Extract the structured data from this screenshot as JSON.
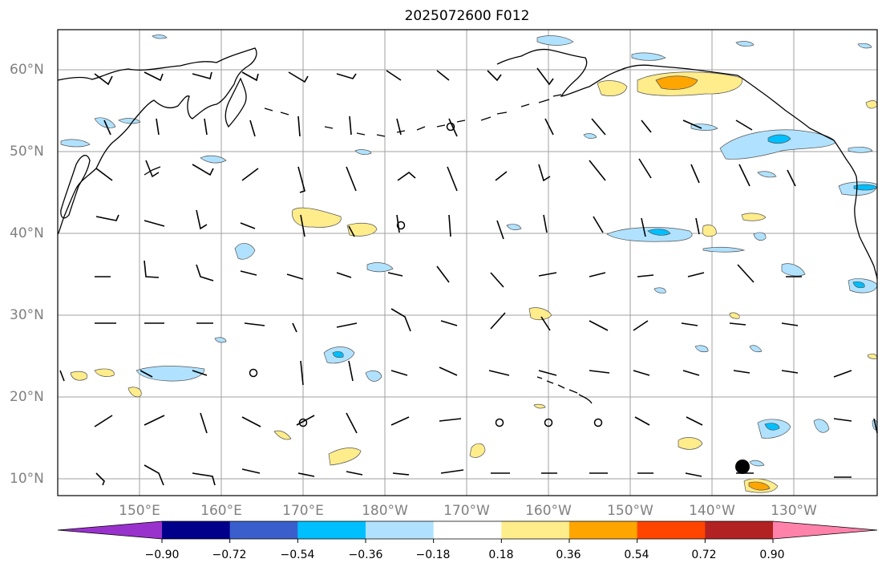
{
  "title": "2025072600 F012",
  "map": {
    "lat_ticks": [
      "60°N",
      "50°N",
      "40°N",
      "30°N",
      "20°N",
      "10°N"
    ],
    "lon_ticks": [
      "150°E",
      "160°E",
      "170°E",
      "180°W",
      "170°W",
      "160°W",
      "150°W",
      "140°W",
      "130°W"
    ],
    "extent": {
      "lon_min": 140,
      "lon_max": 240,
      "lat_min": 8,
      "lat_max": 65
    },
    "coastline_color": "#000000",
    "gridline_color": "#a0a0a0",
    "wind_barb_color": "#000000"
  },
  "colorbar": {
    "colors": [
      "#9932cc",
      "#00008b",
      "#3a5fcd",
      "#00bfff",
      "#b0e2ff",
      "#ffffff",
      "#ffec8b",
      "#ffa500",
      "#ff4500",
      "#b22222",
      "#ff82ab"
    ],
    "tick_labels": [
      "−0.90",
      "−0.72",
      "−0.54",
      "−0.36",
      "−0.18",
      "0.18",
      "0.36",
      "0.54",
      "0.72",
      "0.90"
    ],
    "extend": "both"
  }
}
